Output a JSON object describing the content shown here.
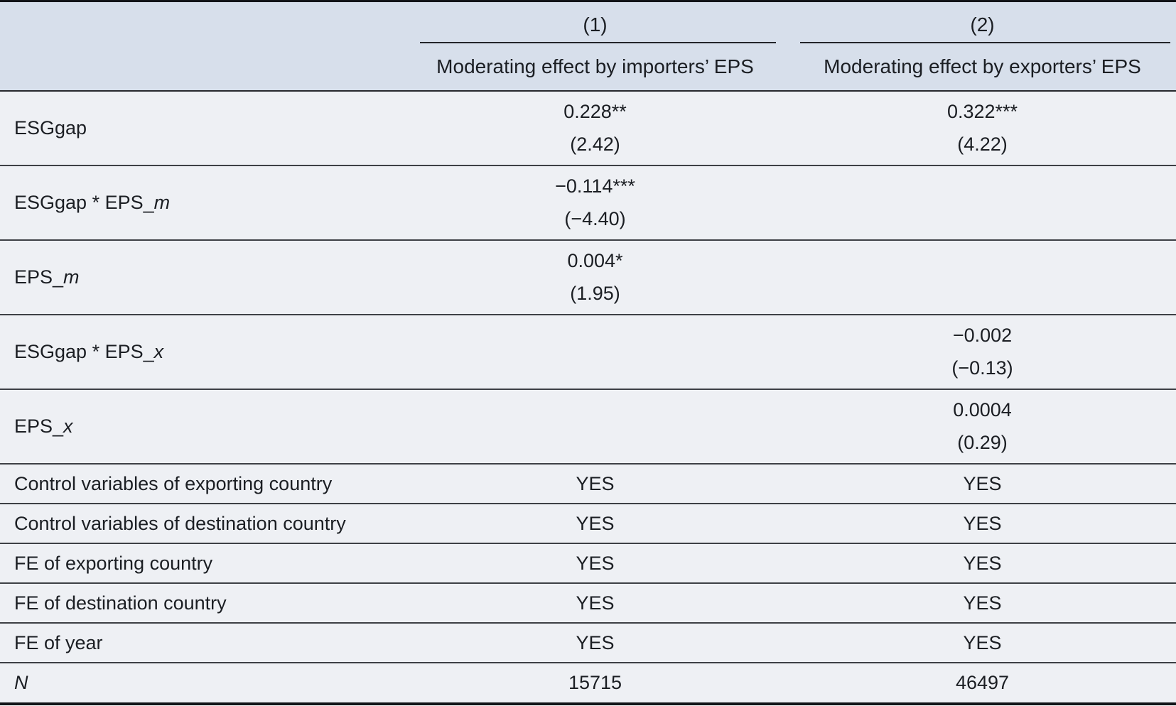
{
  "table": {
    "header": {
      "col1": {
        "number": "(1)",
        "subtitle": "Moderating effect by importers’ EPS"
      },
      "col2": {
        "number": "(2)",
        "subtitle": "Moderating effect by exporters’ EPS"
      }
    },
    "coef_rows": [
      {
        "label": "ESGgap",
        "label_italic": "",
        "c1_est": "0.228**",
        "c1_t": "(2.42)",
        "c2_est": "0.322***",
        "c2_t": "(4.22)"
      },
      {
        "label": "ESGgap * EPS_",
        "label_italic": "m",
        "c1_est": "−0.114***",
        "c1_t": "(−4.40)",
        "c2_est": "",
        "c2_t": ""
      },
      {
        "label": "EPS_",
        "label_italic": "m",
        "c1_est": "0.004*",
        "c1_t": "(1.95)",
        "c2_est": "",
        "c2_t": ""
      },
      {
        "label": "ESGgap * EPS_",
        "label_italic": "x",
        "c1_est": "",
        "c1_t": "",
        "c2_est": "−0.002",
        "c2_t": "(−0.13)"
      },
      {
        "label": "EPS_",
        "label_italic": "x",
        "c1_est": "",
        "c1_t": "",
        "c2_est": "0.0004",
        "c2_t": "(0.29)"
      }
    ],
    "info_rows": [
      {
        "label": "Control variables of exporting country",
        "c1": "YES",
        "c2": "YES"
      },
      {
        "label": "Control variables of destination country",
        "c1": "YES",
        "c2": "YES"
      },
      {
        "label": "FE of exporting country",
        "c1": "YES",
        "c2": "YES"
      },
      {
        "label": "FE of destination country",
        "c1": "YES",
        "c2": "YES"
      },
      {
        "label": "FE of year",
        "c1": "YES",
        "c2": "YES"
      }
    ],
    "n_row": {
      "label": "N",
      "c1": "15715",
      "c2": "46497"
    }
  },
  "colors": {
    "header_bg": "#d7dfeb",
    "body_bg": "#eef0f4",
    "rule": "#3d4045",
    "frame": "#121418",
    "text": "#1b1e23"
  }
}
